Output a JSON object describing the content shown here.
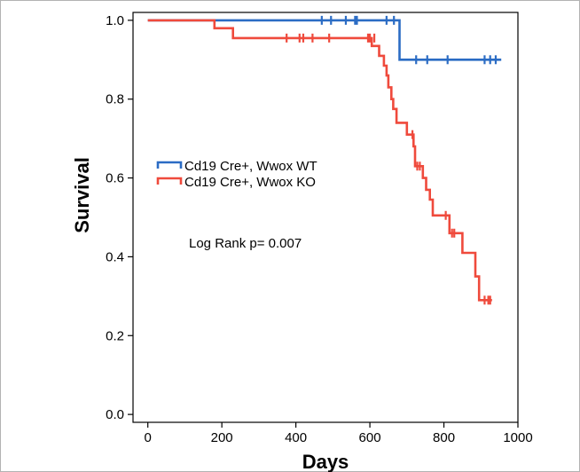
{
  "chart_data": {
    "type": "line",
    "chart_kind": "kaplan-meier survival curve",
    "xlabel": "Days",
    "ylabel": "Survival",
    "xlim": [
      -40,
      1000
    ],
    "ylim": [
      -0.02,
      1.02
    ],
    "x_ticks": [
      0,
      200,
      400,
      600,
      800,
      1000
    ],
    "x_tick_labels": [
      "0",
      "200",
      "400",
      "600",
      "800",
      "1000"
    ],
    "y_ticks": [
      0.0,
      0.2,
      0.4,
      0.6,
      0.8,
      1.0
    ],
    "y_tick_labels": [
      "0.0",
      "0.2",
      "0.4",
      "0.6",
      "0.8",
      "1.0"
    ],
    "grid": false,
    "legend_position": "upper-left",
    "annotation": "Log Rank p= 0.007",
    "series": [
      {
        "name": "Cd19 Cre+, Wwox WT",
        "color": "#2b6cc4",
        "steps": [
          [
            0,
            1.0
          ],
          [
            680,
            1.0
          ],
          [
            680,
            0.9
          ],
          [
            955,
            0.9
          ]
        ],
        "censored": [
          [
            470,
            1.0
          ],
          [
            495,
            1.0
          ],
          [
            535,
            1.0
          ],
          [
            560,
            1.0
          ],
          [
            565,
            1.0
          ],
          [
            645,
            1.0
          ],
          [
            665,
            1.0
          ],
          [
            725,
            0.9
          ],
          [
            755,
            0.9
          ],
          [
            810,
            0.9
          ],
          [
            910,
            0.9
          ],
          [
            925,
            0.9
          ],
          [
            940,
            0.9
          ]
        ]
      },
      {
        "name": "Cd19 Cre+, Wwox KO",
        "color": "#ef4a3c",
        "steps": [
          [
            0,
            1.0
          ],
          [
            180,
            1.0
          ],
          [
            180,
            0.98
          ],
          [
            230,
            0.98
          ],
          [
            230,
            0.955
          ],
          [
            605,
            0.955
          ],
          [
            605,
            0.935
          ],
          [
            625,
            0.935
          ],
          [
            625,
            0.91
          ],
          [
            638,
            0.91
          ],
          [
            638,
            0.885
          ],
          [
            645,
            0.885
          ],
          [
            645,
            0.86
          ],
          [
            650,
            0.86
          ],
          [
            650,
            0.83
          ],
          [
            658,
            0.83
          ],
          [
            658,
            0.8
          ],
          [
            663,
            0.8
          ],
          [
            663,
            0.775
          ],
          [
            672,
            0.775
          ],
          [
            672,
            0.74
          ],
          [
            700,
            0.74
          ],
          [
            700,
            0.71
          ],
          [
            718,
            0.71
          ],
          [
            718,
            0.68
          ],
          [
            722,
            0.68
          ],
          [
            722,
            0.63
          ],
          [
            743,
            0.63
          ],
          [
            743,
            0.6
          ],
          [
            752,
            0.6
          ],
          [
            752,
            0.57
          ],
          [
            762,
            0.57
          ],
          [
            762,
            0.545
          ],
          [
            770,
            0.545
          ],
          [
            770,
            0.505
          ],
          [
            815,
            0.505
          ],
          [
            815,
            0.46
          ],
          [
            850,
            0.46
          ],
          [
            850,
            0.41
          ],
          [
            885,
            0.41
          ],
          [
            885,
            0.35
          ],
          [
            895,
            0.35
          ],
          [
            895,
            0.29
          ],
          [
            930,
            0.29
          ]
        ],
        "censored": [
          [
            375,
            0.955
          ],
          [
            410,
            0.955
          ],
          [
            420,
            0.955
          ],
          [
            445,
            0.955
          ],
          [
            490,
            0.955
          ],
          [
            595,
            0.955
          ],
          [
            600,
            0.955
          ],
          [
            612,
            0.955
          ],
          [
            715,
            0.71
          ],
          [
            728,
            0.63
          ],
          [
            735,
            0.63
          ],
          [
            805,
            0.505
          ],
          [
            822,
            0.46
          ],
          [
            828,
            0.46
          ],
          [
            910,
            0.29
          ],
          [
            920,
            0.29
          ],
          [
            925,
            0.29
          ]
        ]
      }
    ]
  }
}
